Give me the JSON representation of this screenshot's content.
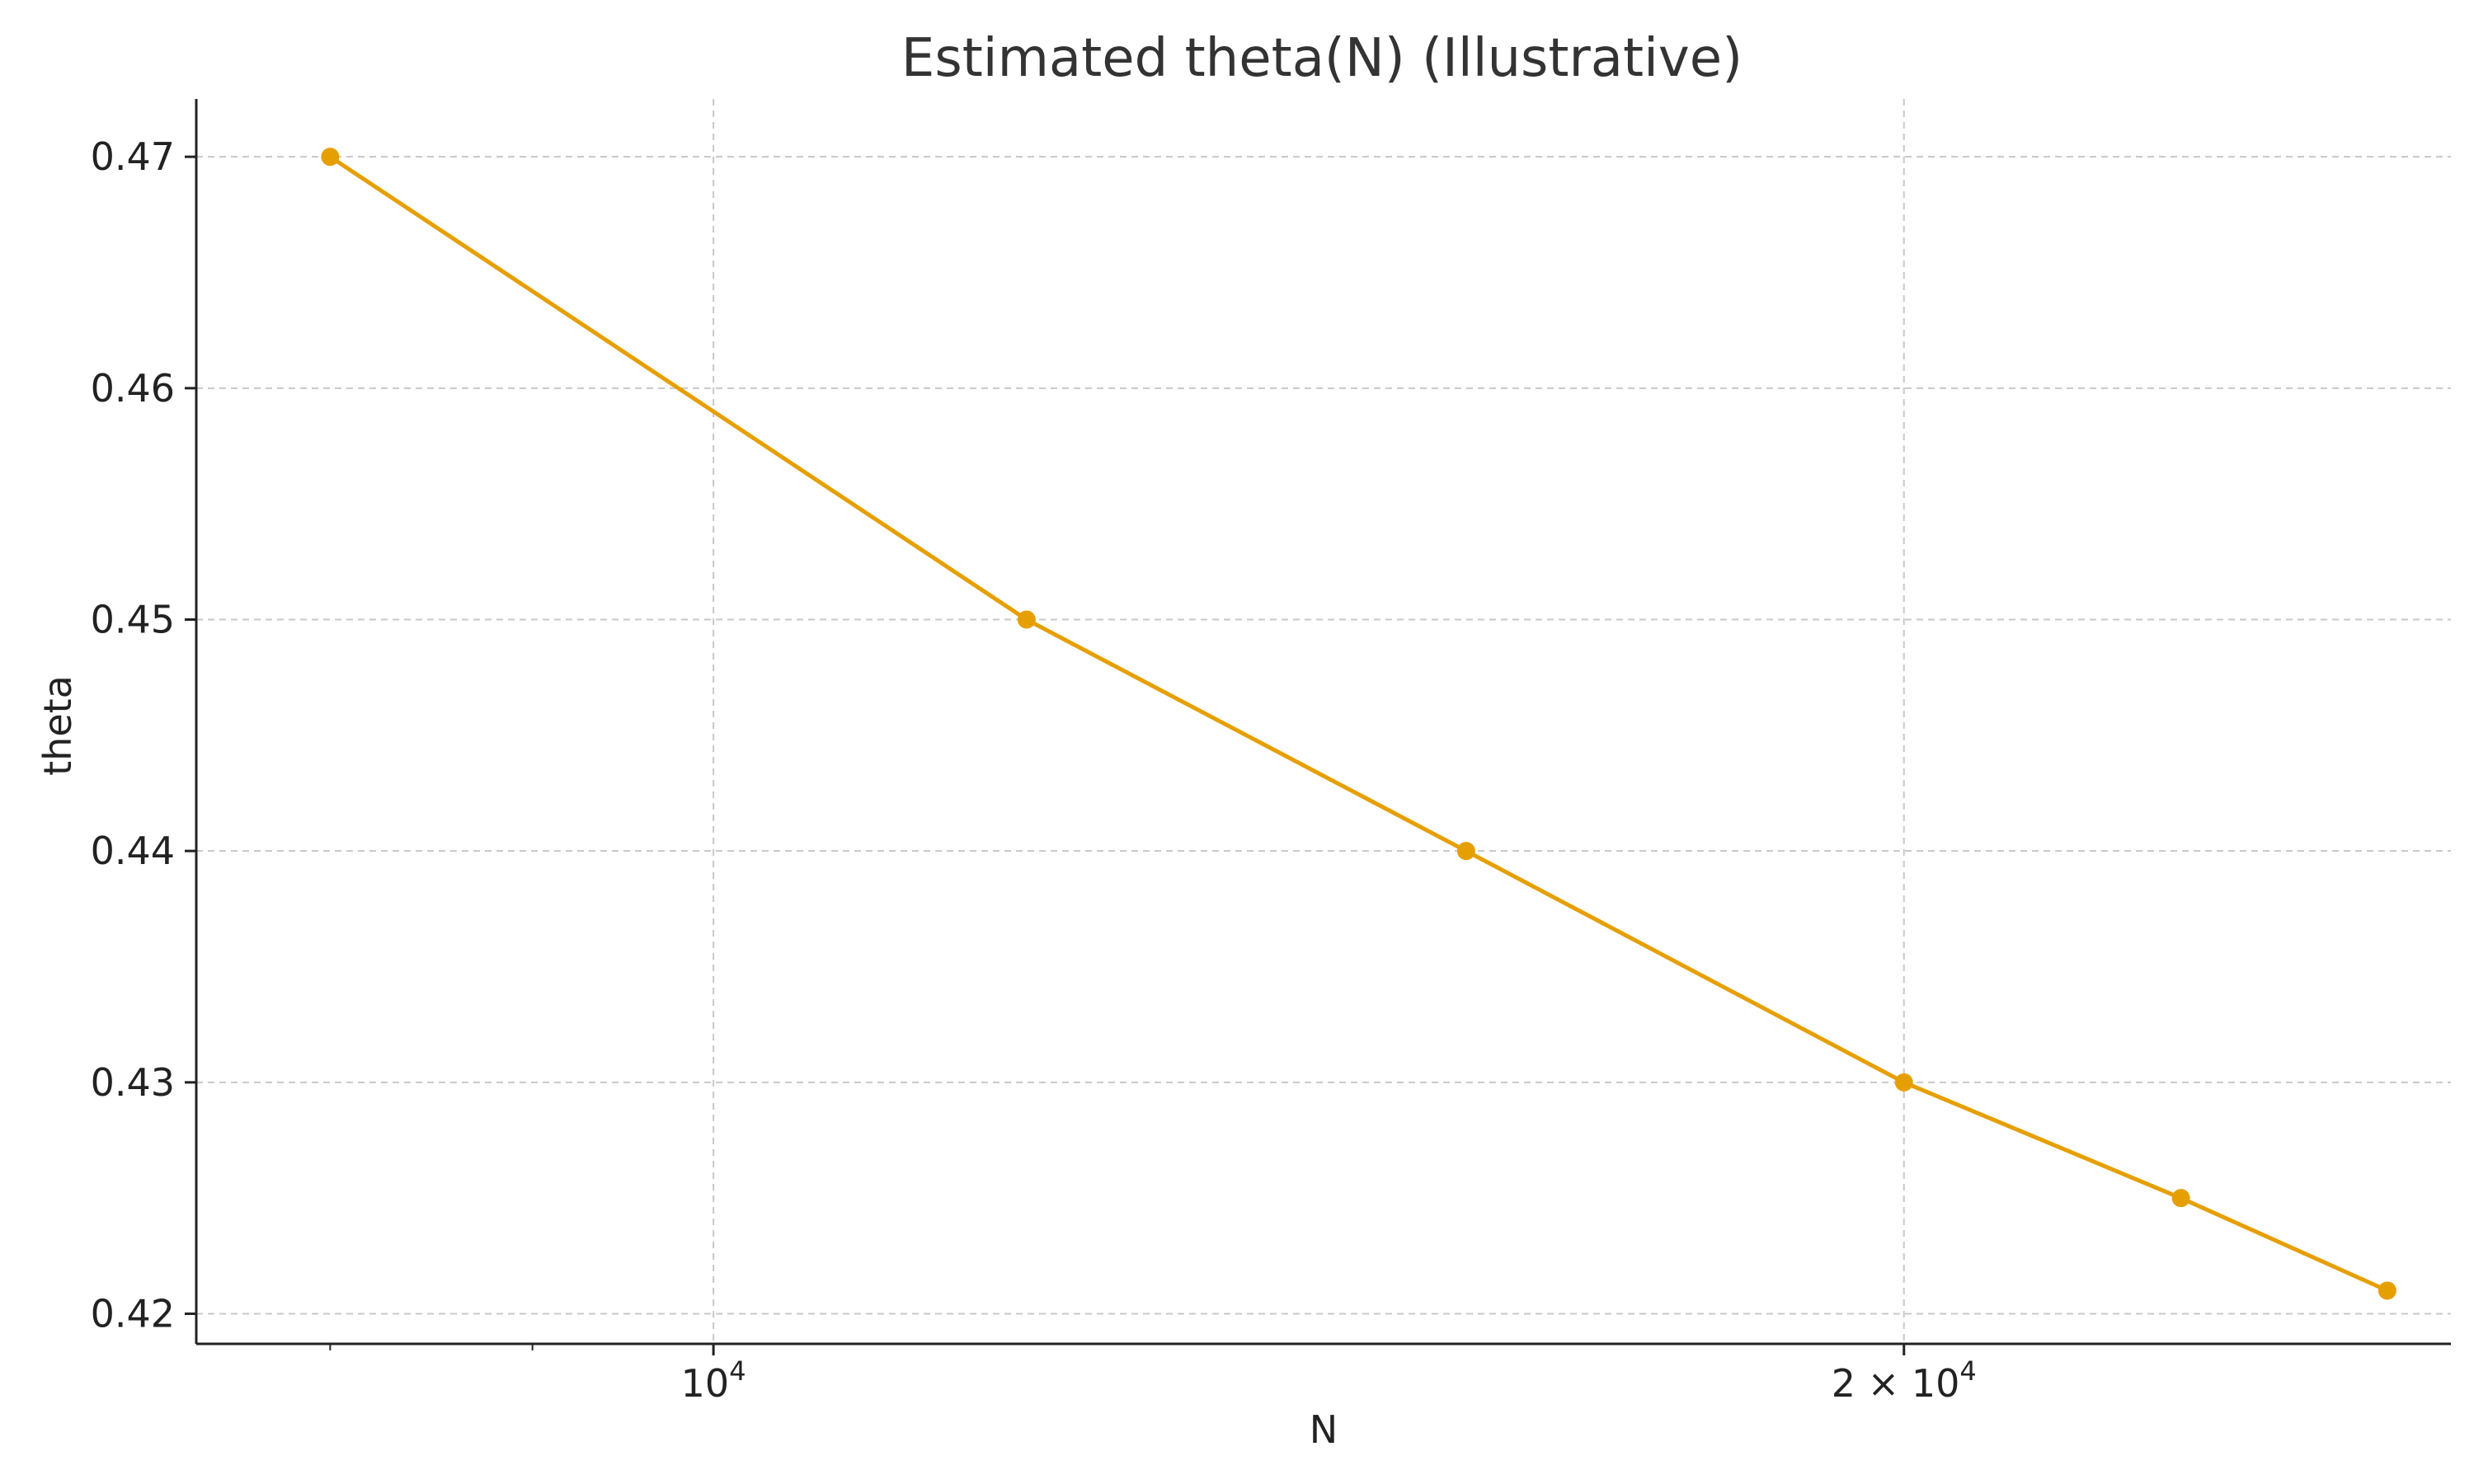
{
  "chart_data": {
    "type": "line",
    "title": "Estimated theta(N) (Illustrative)",
    "xlabel": "N",
    "ylabel": "theta",
    "x_scale": "log",
    "xlim": [
      7400,
      27500
    ],
    "ylim": [
      0.4187,
      0.4725
    ],
    "grid": true,
    "x_major_ticks": [
      {
        "value": 10000,
        "base": "10",
        "exp": "4"
      },
      {
        "value": 20000,
        "base": "2 × 10",
        "exp": "4"
      }
    ],
    "x_minor_ticks": [
      8000,
      9000
    ],
    "y_ticks": [
      0.42,
      0.43,
      0.44,
      0.45,
      0.46,
      0.47
    ],
    "y_tick_labels": [
      "0.42",
      "0.43",
      "0.44",
      "0.45",
      "0.46",
      "0.47"
    ],
    "series": [
      {
        "color": "#E69F00",
        "x": [
          8000,
          12000,
          15500,
          20000,
          23500,
          26500
        ],
        "y": [
          0.47,
          0.45,
          0.44,
          0.43,
          0.425,
          0.421
        ]
      }
    ]
  }
}
